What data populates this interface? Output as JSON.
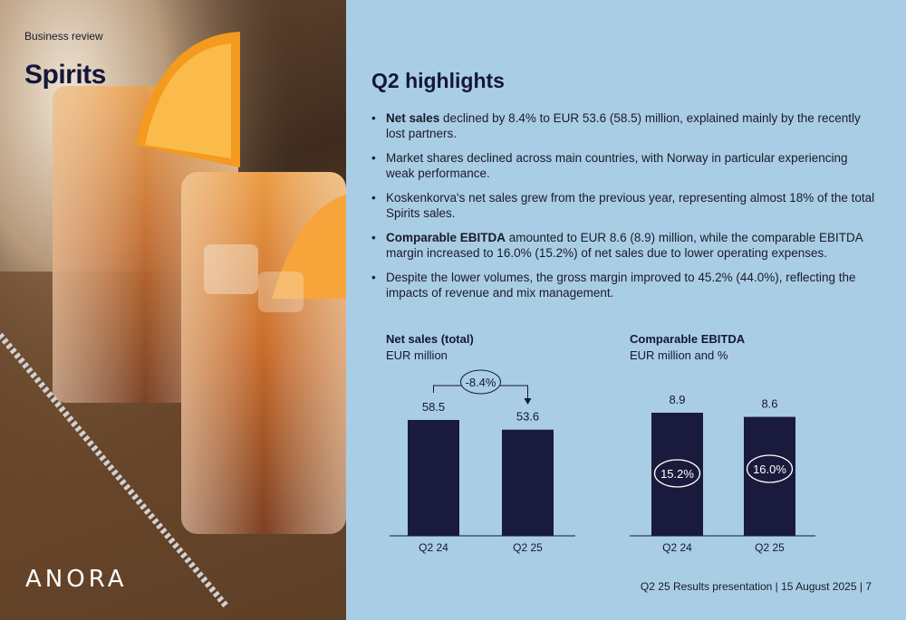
{
  "header": {
    "kicker": "Business review",
    "title": "Spirits"
  },
  "logo_text": "ANORA",
  "highlights": {
    "title": "Q2 highlights",
    "items": [
      {
        "bold": "Net sales",
        "text": " declined by 8.4% to EUR 53.6 (58.5) million, explained mainly by the recently lost partners."
      },
      {
        "bold": "",
        "text": "Market shares declined across main countries, with Norway in particular experiencing weak performance."
      },
      {
        "bold": "",
        "text": "Koskenkorva's net sales grew from the previous year, representing almost 18% of the total Spirits sales."
      },
      {
        "bold": "Comparable EBITDA",
        "text": " amounted to EUR 8.6 (8.9) million, while the comparable EBITDA margin increased to 16.0% (15.2%) of net sales due to lower operating expenses."
      },
      {
        "bold": "",
        "text": "Despite the lower volumes, the gross margin improved to 45.2% (44.0%), reflecting the impacts of revenue and mix management."
      }
    ]
  },
  "chart_data": [
    {
      "type": "bar",
      "title": "Net sales (total)",
      "subtitle": "EUR million",
      "categories": [
        "Q2 24",
        "Q2 25"
      ],
      "values": [
        58.5,
        53.6
      ],
      "value_labels": [
        "58.5",
        "53.6"
      ],
      "change_label": "-8.4%",
      "color": "#191a3c"
    },
    {
      "type": "bar",
      "title": "Comparable EBITDA",
      "subtitle": "EUR million and %",
      "categories": [
        "Q2 24",
        "Q2 25"
      ],
      "values": [
        8.9,
        8.6
      ],
      "value_labels": [
        "8.9",
        "8.6"
      ],
      "margin_labels": [
        "15.2%",
        "16.0%"
      ],
      "color": "#191a3c"
    }
  ],
  "footer": {
    "text": "Q2 25 Results presentation  |  15 August 2025  |  7"
  }
}
